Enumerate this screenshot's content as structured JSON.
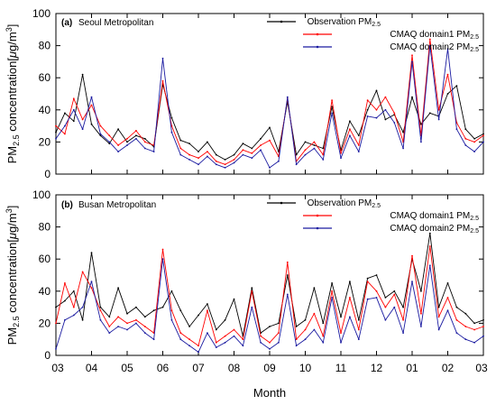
{
  "chart_data": [
    {
      "type": "line",
      "panel_label": "(a)",
      "panel_title": "Seoul Metropolitan",
      "ylabel": "PM2.5 concentration[μg/m3]",
      "ylim": [
        0,
        100
      ],
      "yticks": [
        0,
        20,
        40,
        60,
        80,
        100
      ],
      "xlabel": "Month",
      "xticks": [
        "03",
        "04",
        "05",
        "06",
        "07",
        "08",
        "09",
        "10",
        "11",
        "12",
        "01",
        "02",
        "03"
      ],
      "legend_position": "top-right",
      "series": [
        {
          "name": "Observation PM2.5",
          "color": "#000000",
          "x": [
            0,
            0.25,
            0.5,
            0.75,
            1,
            1.25,
            1.5,
            1.75,
            2,
            2.25,
            2.5,
            2.75,
            3,
            3.25,
            3.5,
            3.75,
            4,
            4.25,
            4.5,
            4.75,
            5,
            5.25,
            5.5,
            5.75,
            6,
            6.25,
            6.5,
            6.75,
            7,
            7.25,
            7.5,
            7.75,
            8,
            8.25,
            8.5,
            8.75,
            9,
            9.25,
            9.5,
            9.75,
            10,
            10.25,
            10.5,
            10.75,
            11,
            11.25,
            11.5,
            11.75,
            12
          ],
          "values": [
            26,
            38,
            33,
            62,
            31,
            24,
            19,
            28,
            20,
            24,
            22,
            17,
            56,
            35,
            21,
            19,
            14,
            20,
            12,
            9,
            12,
            19,
            16,
            22,
            29,
            14,
            45,
            12,
            20,
            18,
            16,
            42,
            15,
            33,
            24,
            40,
            52,
            34,
            37,
            26,
            48,
            31,
            38,
            36,
            50,
            55,
            28,
            22,
            25
          ]
        },
        {
          "name": "CMAQ domain1 PM2.5",
          "color": "#ff0000",
          "x": [
            0,
            0.25,
            0.5,
            0.75,
            1,
            1.25,
            1.5,
            1.75,
            2,
            2.25,
            2.5,
            2.75,
            3,
            3.25,
            3.5,
            3.75,
            4,
            4.25,
            4.5,
            4.75,
            5,
            5.25,
            5.5,
            5.75,
            6,
            6.25,
            6.5,
            6.75,
            7,
            7.25,
            7.5,
            7.75,
            8,
            8.25,
            8.5,
            8.75,
            9,
            9.25,
            9.5,
            9.75,
            10,
            10.25,
            10.5,
            10.75,
            11,
            11.25,
            11.5,
            11.75,
            12
          ],
          "values": [
            30,
            25,
            47,
            34,
            43,
            30,
            24,
            18,
            22,
            27,
            20,
            18,
            58,
            30,
            16,
            12,
            10,
            14,
            8,
            6,
            9,
            15,
            13,
            18,
            21,
            11,
            47,
            8,
            15,
            20,
            12,
            46,
            13,
            28,
            18,
            46,
            40,
            48,
            38,
            20,
            74,
            24,
            84,
            40,
            62,
            32,
            22,
            20,
            24
          ]
        },
        {
          "name": "CMAQ domain2 PM2.5",
          "color": "#1a1aa0",
          "x": [
            0,
            0.25,
            0.5,
            0.75,
            1,
            1.25,
            1.5,
            1.75,
            2,
            2.25,
            2.5,
            2.75,
            3,
            3.25,
            3.5,
            3.75,
            4,
            4.25,
            4.5,
            4.75,
            5,
            5.25,
            5.5,
            5.75,
            6,
            6.25,
            6.5,
            6.75,
            7,
            7.25,
            7.5,
            7.75,
            8,
            8.25,
            8.5,
            8.75,
            9,
            9.25,
            9.5,
            9.75,
            10,
            10.25,
            10.5,
            10.75,
            11,
            11.25,
            11.5,
            11.75,
            12
          ],
          "values": [
            22,
            30,
            40,
            28,
            48,
            25,
            20,
            14,
            18,
            22,
            16,
            14,
            72,
            26,
            12,
            9,
            6,
            11,
            6,
            4,
            7,
            12,
            10,
            15,
            4,
            8,
            48,
            6,
            12,
            16,
            9,
            38,
            10,
            24,
            14,
            36,
            35,
            40,
            32,
            16,
            70,
            20,
            80,
            34,
            78,
            28,
            18,
            14,
            20
          ]
        }
      ]
    },
    {
      "type": "line",
      "panel_label": "(b)",
      "panel_title": "Busan Metropolitan",
      "ylabel": "PM2.5 concentration[μg/m3]",
      "ylim": [
        0,
        100
      ],
      "yticks": [
        0,
        20,
        40,
        60,
        80,
        100
      ],
      "xlabel": "Month",
      "xticks": [
        "03",
        "04",
        "05",
        "06",
        "07",
        "08",
        "09",
        "10",
        "11",
        "12",
        "01",
        "02",
        "03"
      ],
      "legend_position": "top-right",
      "series": [
        {
          "name": "Observation PM2.5",
          "color": "#000000",
          "x": [
            0,
            0.25,
            0.5,
            0.75,
            1,
            1.25,
            1.5,
            1.75,
            2,
            2.25,
            2.5,
            2.75,
            3,
            3.25,
            3.5,
            3.75,
            4,
            4.25,
            4.5,
            4.75,
            5,
            5.25,
            5.5,
            5.75,
            6,
            6.25,
            6.5,
            6.75,
            7,
            7.25,
            7.5,
            7.75,
            8,
            8.25,
            8.5,
            8.75,
            9,
            9.25,
            9.5,
            9.75,
            10,
            10.25,
            10.5,
            10.75,
            11,
            11.25,
            11.5,
            11.75,
            12
          ],
          "values": [
            30,
            34,
            40,
            22,
            64,
            30,
            24,
            42,
            26,
            30,
            24,
            28,
            30,
            40,
            28,
            18,
            25,
            32,
            16,
            22,
            35,
            12,
            42,
            14,
            18,
            20,
            50,
            18,
            22,
            42,
            20,
            45,
            24,
            46,
            22,
            48,
            50,
            36,
            40,
            30,
            60,
            40,
            76,
            30,
            45,
            30,
            26,
            20,
            22
          ]
        },
        {
          "name": "CMAQ domain1 PM2.5",
          "color": "#ff0000",
          "x": [
            0,
            0.25,
            0.5,
            0.75,
            1,
            1.25,
            1.5,
            1.75,
            2,
            2.25,
            2.5,
            2.75,
            3,
            3.25,
            3.5,
            3.75,
            4,
            4.25,
            4.5,
            4.75,
            5,
            5.25,
            5.5,
            5.75,
            6,
            6.25,
            6.5,
            6.75,
            7,
            7.25,
            7.5,
            7.75,
            8,
            8.25,
            8.5,
            8.75,
            9,
            9.25,
            9.5,
            9.75,
            10,
            10.25,
            10.5,
            10.75,
            11,
            11.25,
            11.5,
            11.75,
            12
          ],
          "values": [
            20,
            45,
            30,
            52,
            42,
            28,
            18,
            24,
            20,
            22,
            18,
            14,
            66,
            28,
            14,
            10,
            6,
            28,
            8,
            12,
            16,
            10,
            40,
            12,
            8,
            14,
            58,
            10,
            16,
            26,
            12,
            40,
            14,
            36,
            16,
            46,
            40,
            30,
            38,
            22,
            62,
            26,
            68,
            24,
            36,
            22,
            18,
            16,
            18
          ]
        },
        {
          "name": "CMAQ domain2 PM2.5",
          "color": "#1a1aa0",
          "x": [
            0,
            0.25,
            0.5,
            0.75,
            1,
            1.25,
            1.5,
            1.75,
            2,
            2.25,
            2.5,
            2.75,
            3,
            3.25,
            3.5,
            3.75,
            4,
            4.25,
            4.5,
            4.75,
            5,
            5.25,
            5.5,
            5.75,
            6,
            6.25,
            6.5,
            6.75,
            7,
            7.25,
            7.5,
            7.75,
            8,
            8.25,
            8.5,
            8.75,
            9,
            9.25,
            9.5,
            9.75,
            10,
            10.25,
            10.5,
            10.75,
            11,
            11.25,
            11.5,
            11.75,
            12
          ],
          "values": [
            4,
            22,
            25,
            30,
            46,
            22,
            14,
            18,
            16,
            20,
            14,
            10,
            60,
            22,
            10,
            6,
            2,
            14,
            5,
            8,
            12,
            6,
            30,
            8,
            4,
            8,
            38,
            6,
            10,
            16,
            8,
            36,
            8,
            24,
            10,
            35,
            36,
            22,
            30,
            14,
            46,
            18,
            56,
            16,
            28,
            14,
            10,
            8,
            12
          ]
        }
      ]
    }
  ]
}
